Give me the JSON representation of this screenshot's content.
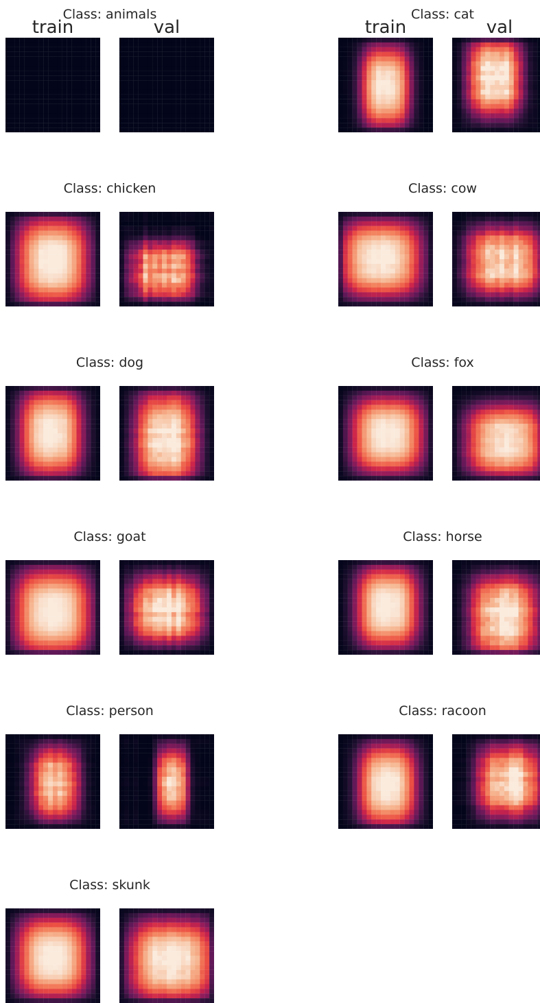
{
  "figure": {
    "type": "heatmap-grid",
    "colormap": "rocket",
    "column_labels": [
      "train",
      "val"
    ]
  },
  "chart_data": [
    {
      "type": "heatmap",
      "title": "Class: animals",
      "column_titles": [
        "train",
        "val"
      ],
      "value_range": [
        0,
        1
      ],
      "train": {
        "cx": 0.5,
        "cy": 0.5,
        "sx": 0.3,
        "sy": 0.35,
        "peak": 0.0,
        "noise": 0.0,
        "mode": "blank"
      },
      "val": {
        "cx": 0.5,
        "cy": 0.5,
        "sx": 0.3,
        "sy": 0.35,
        "peak": 0.0,
        "noise": 0.0,
        "mode": "blank"
      }
    },
    {
      "type": "heatmap",
      "title": "Class: cat",
      "column_titles": [
        "train",
        "val"
      ],
      "value_range": [
        0,
        1
      ],
      "train": {
        "cx": 0.5,
        "cy": 0.52,
        "sx": 0.22,
        "sy": 0.36,
        "peak": 1.0,
        "noise": 0.05,
        "mode": "box"
      },
      "val": {
        "cx": 0.45,
        "cy": 0.42,
        "sx": 0.24,
        "sy": 0.34,
        "peak": 1.0,
        "noise": 0.15,
        "mode": "box"
      }
    },
    {
      "type": "heatmap",
      "title": "Class: chicken",
      "value_range": [
        0,
        1
      ],
      "train": {
        "cx": 0.5,
        "cy": 0.52,
        "sx": 0.32,
        "sy": 0.38,
        "peak": 1.0,
        "noise": 0.05,
        "mode": "box"
      },
      "val": {
        "cx": 0.47,
        "cy": 0.62,
        "sx": 0.3,
        "sy": 0.26,
        "peak": 0.9,
        "noise": 0.3,
        "mode": "box"
      }
    },
    {
      "type": "heatmap",
      "title": "Class: cow",
      "value_range": [
        0,
        1
      ],
      "train": {
        "cx": 0.45,
        "cy": 0.5,
        "sx": 0.36,
        "sy": 0.34,
        "peak": 1.0,
        "noise": 0.05,
        "mode": "box"
      },
      "val": {
        "cx": 0.55,
        "cy": 0.52,
        "sx": 0.34,
        "sy": 0.3,
        "peak": 0.95,
        "noise": 0.2,
        "mode": "box"
      }
    },
    {
      "type": "heatmap",
      "title": "Class: dog",
      "value_range": [
        0,
        1
      ],
      "train": {
        "cx": 0.48,
        "cy": 0.5,
        "sx": 0.28,
        "sy": 0.38,
        "peak": 1.0,
        "noise": 0.04,
        "mode": "box"
      },
      "val": {
        "cx": 0.5,
        "cy": 0.55,
        "sx": 0.28,
        "sy": 0.4,
        "peak": 1.0,
        "noise": 0.15,
        "mode": "box"
      }
    },
    {
      "type": "heatmap",
      "title": "Class: fox",
      "value_range": [
        0,
        1
      ],
      "train": {
        "cx": 0.52,
        "cy": 0.52,
        "sx": 0.32,
        "sy": 0.34,
        "peak": 1.0,
        "noise": 0.03,
        "mode": "box"
      },
      "val": {
        "cx": 0.55,
        "cy": 0.58,
        "sx": 0.34,
        "sy": 0.32,
        "peak": 1.0,
        "noise": 0.1,
        "mode": "box"
      }
    },
    {
      "type": "heatmap",
      "title": "Class: goat",
      "value_range": [
        0,
        1
      ],
      "train": {
        "cx": 0.5,
        "cy": 0.55,
        "sx": 0.34,
        "sy": 0.38,
        "peak": 1.0,
        "noise": 0.03,
        "mode": "box"
      },
      "val": {
        "cx": 0.5,
        "cy": 0.52,
        "sx": 0.33,
        "sy": 0.3,
        "peak": 0.95,
        "noise": 0.2,
        "mode": "box"
      }
    },
    {
      "type": "heatmap",
      "title": "Class: horse",
      "value_range": [
        0,
        1
      ],
      "train": {
        "cx": 0.52,
        "cy": 0.5,
        "sx": 0.28,
        "sy": 0.36,
        "peak": 1.0,
        "noise": 0.03,
        "mode": "box"
      },
      "val": {
        "cx": 0.55,
        "cy": 0.6,
        "sx": 0.3,
        "sy": 0.36,
        "peak": 1.0,
        "noise": 0.18,
        "mode": "box"
      }
    },
    {
      "type": "heatmap",
      "title": "Class: person",
      "value_range": [
        0,
        1
      ],
      "train": {
        "cx": 0.52,
        "cy": 0.52,
        "sx": 0.22,
        "sy": 0.32,
        "peak": 0.9,
        "noise": 0.18,
        "mode": "box"
      },
      "val": {
        "cx": 0.56,
        "cy": 0.52,
        "sx": 0.14,
        "sy": 0.32,
        "peak": 0.95,
        "noise": 0.18,
        "mode": "box"
      }
    },
    {
      "type": "heatmap",
      "title": "Class: racoon",
      "value_range": [
        0,
        1
      ],
      "train": {
        "cx": 0.52,
        "cy": 0.54,
        "sx": 0.26,
        "sy": 0.36,
        "peak": 1.0,
        "noise": 0.04,
        "mode": "box"
      },
      "val": {
        "cx": 0.6,
        "cy": 0.5,
        "sx": 0.28,
        "sy": 0.32,
        "peak": 0.95,
        "noise": 0.18,
        "mode": "box"
      }
    },
    {
      "type": "heatmap",
      "title": "Class: skunk",
      "value_range": [
        0,
        1
      ],
      "train": {
        "cx": 0.5,
        "cy": 0.52,
        "sx": 0.32,
        "sy": 0.36,
        "peak": 1.0,
        "noise": 0.03,
        "mode": "box"
      },
      "val": {
        "cx": 0.55,
        "cy": 0.55,
        "sx": 0.38,
        "sy": 0.36,
        "peak": 1.0,
        "noise": 0.08,
        "mode": "box"
      }
    }
  ]
}
